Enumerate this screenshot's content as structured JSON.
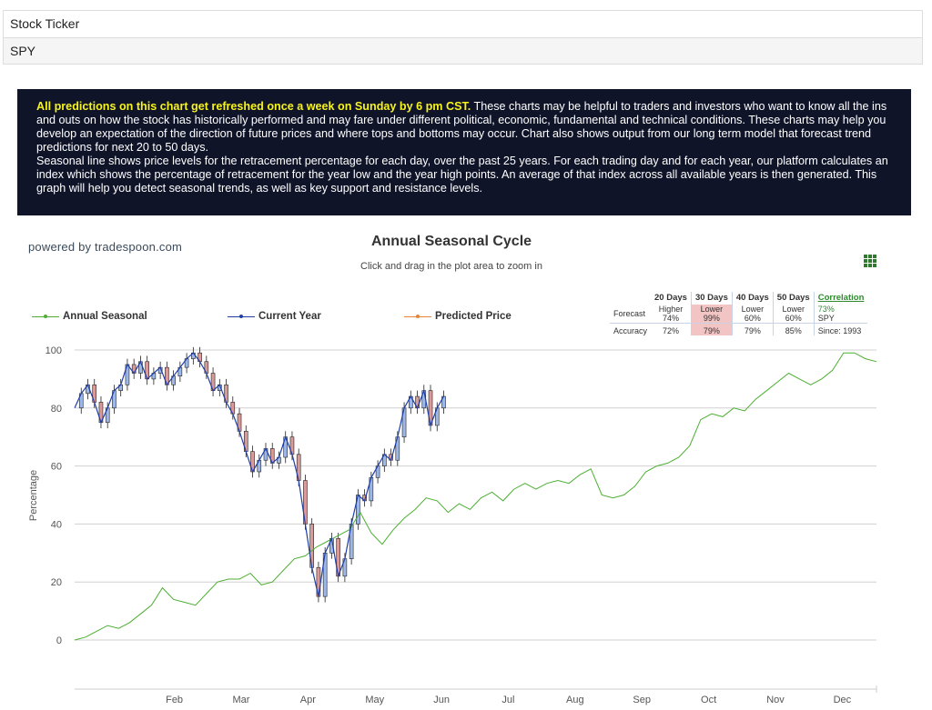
{
  "ticker": {
    "label": "Stock Ticker",
    "value": "SPY"
  },
  "info": {
    "highlight": "All predictions on this chart get refreshed once a week on Sunday by 6 pm CST.",
    "text1": " These charts may be helpful to traders and investors who want to know all the ins and outs on how the stock has historically performed and may fare under different political, economic, fundamental and technical conditions. These charts may help you develop an expectation of the direction of future prices and where tops and bottoms may occur. Chart also shows output from our long term model that forecast trend predictions for next 20 to 50 days.",
    "text2": "Seasonal line shows price levels for the retracement percentage for each day, over the past 25 years. For each trading day and for each year, our platform calculates an index which shows the percentage of retracement for the year low and the year high points. An average of that index across all available years is then generated. This graph will help you detect seasonal trends, as well as key support and resistance levels."
  },
  "powered_by": "powered by tradespoon.com",
  "forecast_table": {
    "headers": [
      "20 Days",
      "30 Days",
      "40 Days",
      "50 Days"
    ],
    "forecast_label": "Forecast",
    "forecast_dir": [
      "Higher",
      "Lower",
      "Lower",
      "Lower"
    ],
    "forecast_pct": [
      "74%",
      "99%",
      "60%",
      "60%"
    ],
    "accuracy_label": "Accuracy",
    "accuracy": [
      "72%",
      "79%",
      "79%",
      "85%"
    ],
    "correlation_label": "Correlation",
    "correlation_value": "73%",
    "symbol": "SPY",
    "since": "Since: 1993"
  },
  "colors": {
    "seasonal": "#4caf32",
    "current": "#1f3ea8",
    "predicted": "#e8833a",
    "candle_up": "#9db8e8",
    "candle_down": "#d99a9a",
    "grid": "#d0d0d0"
  },
  "chart_data": {
    "type": "line",
    "title": "Annual Seasonal Cycle",
    "subtitle": "Click and drag in the plot area to zoom in",
    "ylabel": "Percentage",
    "ylim": [
      0,
      100
    ],
    "yticks": [
      0,
      20,
      40,
      60,
      80,
      100
    ],
    "x_range": [
      "Jan",
      "Dec 31"
    ],
    "month_labels": [
      "Feb",
      "Mar",
      "Apr",
      "May",
      "Jun",
      "Jul",
      "Aug",
      "Sep",
      "Oct",
      "Nov",
      "Dec"
    ],
    "legend": [
      "Annual Seasonal",
      "Current Year",
      "Predicted Price"
    ],
    "legend_position": "top-left",
    "series": [
      {
        "name": "Annual Seasonal",
        "x_day": [
          0,
          5,
          10,
          15,
          20,
          25,
          30,
          35,
          40,
          45,
          50,
          55,
          60,
          65,
          70,
          75,
          80,
          85,
          90,
          95,
          100,
          105,
          110,
          115,
          120,
          125,
          130,
          135,
          140,
          145,
          150,
          155,
          160,
          165,
          170,
          175,
          180,
          185,
          190,
          195,
          200,
          205,
          210,
          215,
          220,
          225,
          230,
          235,
          240,
          245,
          250,
          255,
          260,
          265,
          270,
          275,
          280,
          285,
          290,
          295,
          300,
          305,
          310,
          315,
          320,
          325,
          330,
          335,
          340,
          345,
          350,
          355,
          360,
          365
        ],
        "values": [
          0,
          1,
          3,
          5,
          4,
          6,
          9,
          12,
          18,
          14,
          13,
          12,
          16,
          20,
          21,
          21,
          23,
          19,
          20,
          24,
          28,
          29,
          32,
          34,
          36,
          38,
          44,
          37,
          33,
          38,
          42,
          45,
          49,
          48,
          44,
          47,
          45,
          49,
          51,
          48,
          52,
          54,
          52,
          54,
          55,
          54,
          57,
          59,
          50,
          49,
          50,
          53,
          58,
          60,
          61,
          63,
          67,
          76,
          78,
          77,
          80,
          79,
          83,
          86,
          89,
          92,
          90,
          88,
          90,
          93,
          99,
          99,
          97,
          96
        ]
      },
      {
        "name": "Current Year",
        "x_day": [
          0,
          3,
          6,
          9,
          12,
          15,
          18,
          21,
          24,
          27,
          30,
          33,
          36,
          39,
          42,
          45,
          48,
          51,
          54,
          57,
          60,
          63,
          66,
          69,
          72,
          75,
          78,
          81,
          84,
          87,
          90,
          93,
          96,
          99,
          102,
          105,
          108,
          111,
          114,
          117,
          120,
          123,
          126,
          129,
          132,
          135,
          138,
          141,
          144,
          147,
          150,
          153,
          156,
          159,
          162,
          165,
          168
        ],
        "values": [
          80,
          85,
          88,
          82,
          75,
          80,
          86,
          88,
          95,
          92,
          96,
          90,
          92,
          94,
          88,
          91,
          94,
          97,
          99,
          96,
          92,
          86,
          88,
          82,
          78,
          72,
          65,
          58,
          62,
          66,
          61,
          63,
          70,
          64,
          55,
          40,
          25,
          15,
          30,
          35,
          22,
          28,
          40,
          50,
          48,
          56,
          60,
          64,
          62,
          70,
          80,
          84,
          80,
          86,
          74,
          80,
          84
        ]
      }
    ]
  }
}
